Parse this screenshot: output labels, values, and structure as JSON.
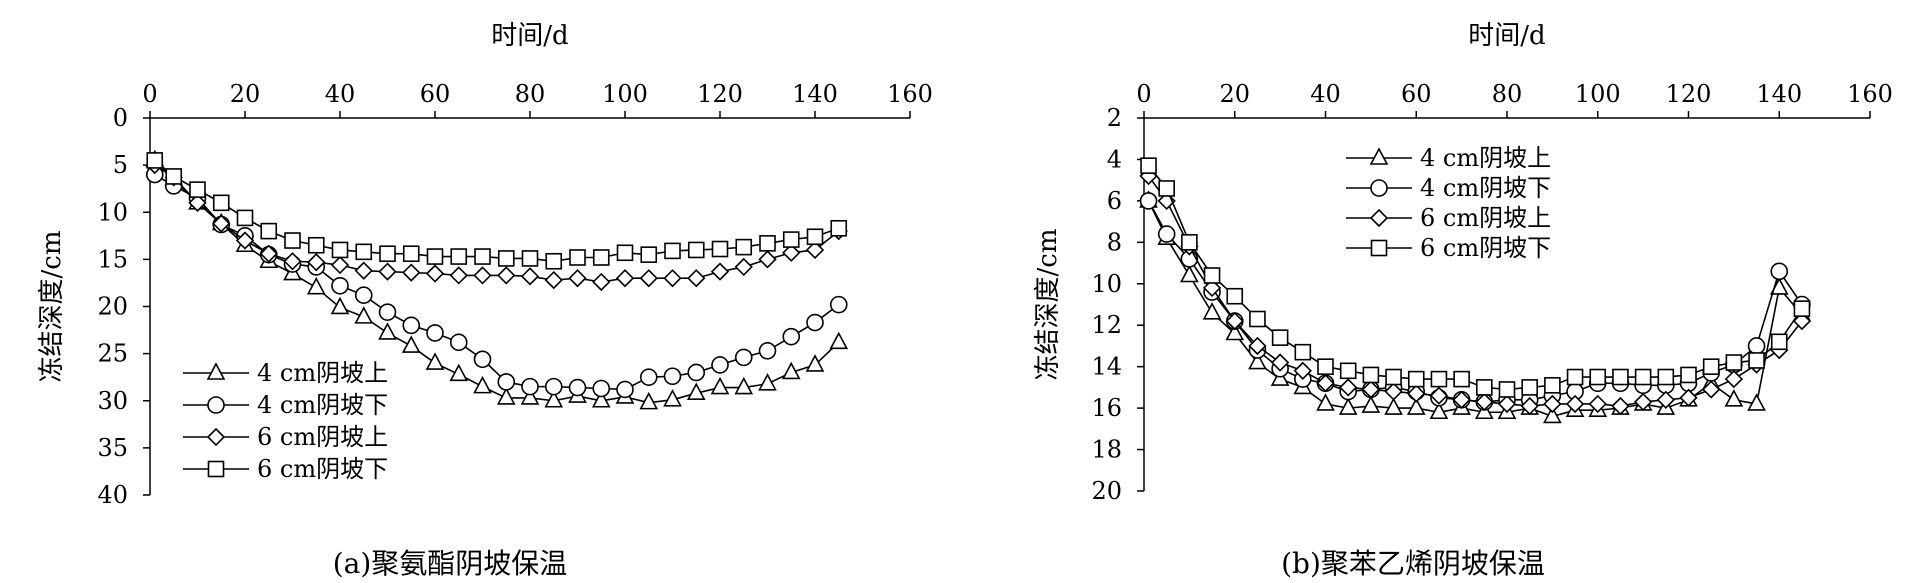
{
  "chart_data": [
    {
      "type": "line",
      "caption": "(a)聚氨酯阴坡保温",
      "xlabel": "时间/d",
      "ylabel": "冻结深度/cm",
      "xlim": [
        0,
        160
      ],
      "ylim": [
        0,
        40
      ],
      "x_ticks": [
        0,
        20,
        40,
        60,
        80,
        100,
        120,
        140,
        160
      ],
      "y_ticks": [
        0,
        5,
        10,
        15,
        20,
        25,
        30,
        35,
        40
      ],
      "x_axis_position": "top",
      "y_inverted": true,
      "legend_position": "bottom-left",
      "series": [
        {
          "name": "4 cm阴坡上",
          "marker": "triangle",
          "x": [
            1,
            5,
            10,
            15,
            20,
            25,
            30,
            35,
            40,
            45,
            50,
            55,
            60,
            65,
            70,
            75,
            80,
            85,
            90,
            95,
            100,
            105,
            110,
            115,
            120,
            125,
            130,
            135,
            140,
            145
          ],
          "y": [
            4.5,
            6.5,
            9,
            11.2,
            13.5,
            15.2,
            16.5,
            18,
            20.1,
            21.1,
            22.8,
            24.2,
            26,
            27.2,
            28.5,
            29.7,
            29.7,
            30,
            29.5,
            30,
            29.6,
            30.2,
            29.9,
            29.2,
            28.6,
            28.6,
            28.2,
            27,
            26.2,
            23.8
          ]
        },
        {
          "name": "4 cm阴坡下",
          "marker": "circle",
          "x": [
            1,
            5,
            10,
            15,
            20,
            25,
            30,
            35,
            40,
            45,
            50,
            55,
            60,
            65,
            70,
            75,
            80,
            85,
            90,
            95,
            100,
            105,
            110,
            115,
            120,
            125,
            130,
            135,
            140,
            145
          ],
          "y": [
            6,
            7.2,
            8.5,
            11.3,
            12.5,
            14.5,
            15.5,
            15.8,
            17.8,
            18.8,
            20.6,
            22,
            22.8,
            23.8,
            25.6,
            28,
            28.5,
            28.5,
            28.6,
            28.7,
            28.8,
            27.5,
            27.4,
            27,
            26.2,
            25.4,
            24.7,
            23.2,
            21.7,
            19.8
          ]
        },
        {
          "name": "6 cm阴坡上",
          "marker": "diamond",
          "x": [
            1,
            5,
            10,
            15,
            20,
            25,
            30,
            35,
            40,
            45,
            50,
            55,
            60,
            65,
            70,
            75,
            80,
            85,
            90,
            95,
            100,
            105,
            110,
            115,
            120,
            125,
            130,
            135,
            140,
            145
          ],
          "y": [
            5,
            6.3,
            9,
            11.2,
            13,
            14.4,
            15.2,
            15.3,
            15.6,
            16.2,
            16.3,
            16.4,
            16.5,
            16.7,
            16.7,
            16.7,
            16.8,
            17.2,
            17,
            17.4,
            17,
            17,
            17,
            17,
            16.3,
            15.8,
            15,
            14.3,
            14,
            12
          ],
          "note": ""
        },
        {
          "name": "6 cm阴坡下",
          "marker": "square",
          "x": [
            1,
            5,
            10,
            15,
            20,
            25,
            30,
            35,
            40,
            45,
            50,
            55,
            60,
            65,
            70,
            75,
            80,
            85,
            90,
            95,
            100,
            105,
            110,
            115,
            120,
            125,
            130,
            135,
            140,
            145
          ],
          "y": [
            4.5,
            6.2,
            7.6,
            9,
            10.6,
            12,
            13,
            13.5,
            14,
            14.2,
            14.4,
            14.4,
            14.7,
            14.7,
            14.7,
            14.9,
            14.9,
            15.2,
            14.8,
            14.8,
            14.3,
            14.5,
            14.1,
            14,
            13.9,
            13.7,
            13.3,
            12.9,
            12.6,
            11.7
          ]
        }
      ]
    },
    {
      "type": "line",
      "caption": "(b)聚苯乙烯阴坡保温",
      "xlabel": "时间/d",
      "ylabel": "冻结深度/cm",
      "xlim": [
        0,
        160
      ],
      "ylim": [
        2,
        20
      ],
      "x_ticks": [
        0,
        20,
        40,
        60,
        80,
        100,
        120,
        140,
        160
      ],
      "y_ticks": [
        2,
        4,
        6,
        8,
        10,
        12,
        14,
        16,
        18,
        20
      ],
      "x_axis_position": "top",
      "y_inverted": true,
      "legend_position": "top-left",
      "series": [
        {
          "name": "4 cm阴坡上",
          "marker": "triangle",
          "x": [
            1,
            5,
            10,
            15,
            20,
            25,
            30,
            35,
            40,
            45,
            50,
            55,
            60,
            65,
            70,
            75,
            80,
            85,
            90,
            95,
            100,
            105,
            110,
            115,
            120,
            125,
            130,
            135,
            140,
            145
          ],
          "y": [
            6,
            7.8,
            9.6,
            11.4,
            12.4,
            13.8,
            14.6,
            15,
            15.8,
            16,
            15.9,
            16,
            16,
            16.2,
            16,
            16.2,
            16.2,
            16,
            16.4,
            16.1,
            16.1,
            16,
            15.8,
            16,
            15.6,
            14.8,
            15.6,
            15.8,
            10.2,
            11.5
          ]
        },
        {
          "name": "4 cm阴坡下",
          "marker": "circle",
          "x": [
            1,
            5,
            10,
            15,
            20,
            25,
            30,
            35,
            40,
            45,
            50,
            55,
            60,
            65,
            70,
            75,
            80,
            85,
            90,
            95,
            100,
            105,
            110,
            115,
            120,
            125,
            130,
            135,
            140,
            145
          ],
          "y": [
            6,
            7.6,
            8.8,
            10.4,
            11.8,
            13.2,
            14.1,
            14.6,
            14.8,
            15.2,
            15.1,
            15,
            15.2,
            15.5,
            15.6,
            15.7,
            15.6,
            15.6,
            15.4,
            15.2,
            14.8,
            14.8,
            14.9,
            14.9,
            14.8,
            14.3,
            13.9,
            13,
            9.4,
            11
          ]
        },
        {
          "name": "6 cm阴坡上",
          "marker": "diamond",
          "x": [
            1,
            5,
            10,
            15,
            20,
            25,
            30,
            35,
            40,
            45,
            50,
            55,
            60,
            65,
            70,
            75,
            80,
            85,
            90,
            95,
            100,
            105,
            110,
            115,
            120,
            125,
            130,
            135,
            140,
            145
          ],
          "y": [
            4.8,
            6,
            8.2,
            10.2,
            11.8,
            13,
            13.8,
            14.2,
            14.8,
            15,
            15.1,
            15.2,
            15.3,
            15.4,
            15.6,
            15.7,
            15.8,
            15.9,
            15.8,
            15.8,
            15.8,
            15.9,
            15.7,
            15.6,
            15.5,
            15.1,
            14.6,
            13.9,
            13.2,
            11.8
          ]
        },
        {
          "name": "6 cm阴坡下",
          "marker": "square",
          "x": [
            1,
            5,
            10,
            15,
            20,
            25,
            30,
            35,
            40,
            45,
            50,
            55,
            60,
            65,
            70,
            75,
            80,
            85,
            90,
            95,
            100,
            105,
            110,
            115,
            120,
            125,
            130,
            135,
            140,
            145
          ],
          "y": [
            4.3,
            5.4,
            8,
            9.6,
            10.6,
            11.7,
            12.6,
            13.3,
            14,
            14.2,
            14.4,
            14.5,
            14.6,
            14.6,
            14.6,
            15,
            15.1,
            15,
            14.9,
            14.5,
            14.5,
            14.5,
            14.5,
            14.5,
            14.4,
            14,
            13.8,
            13.7,
            12.8,
            11.2
          ]
        }
      ]
    }
  ]
}
